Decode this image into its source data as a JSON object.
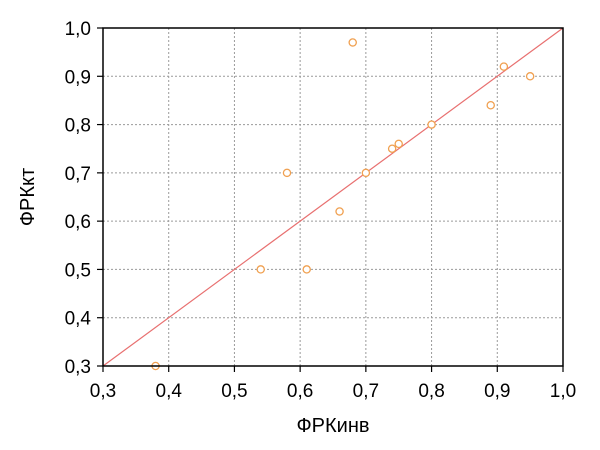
{
  "chart_data": {
    "type": "scatter",
    "title": "",
    "xlabel": "ФРКинв",
    "ylabel": "ФРКкт",
    "xlim": [
      0.3,
      1.0
    ],
    "ylim": [
      0.3,
      1.0
    ],
    "xticks": [
      0.3,
      0.4,
      0.5,
      0.6,
      0.7,
      0.8,
      0.9,
      1.0
    ],
    "yticks": [
      0.3,
      0.4,
      0.5,
      0.6,
      0.7,
      0.8,
      0.9,
      1.0
    ],
    "xtick_labels": [
      "0,3",
      "0,4",
      "0,5",
      "0,6",
      "0,7",
      "0,8",
      "0,9",
      "1,0"
    ],
    "ytick_labels": [
      "0,3",
      "0,4",
      "0,5",
      "0,6",
      "0,7",
      "0,8",
      "0,9",
      "1,0"
    ],
    "grid": true,
    "series": [
      {
        "marker": "open-circle",
        "color": "#f0a050",
        "points": [
          {
            "x": 0.38,
            "y": 0.3
          },
          {
            "x": 0.54,
            "y": 0.5
          },
          {
            "x": 0.58,
            "y": 0.7
          },
          {
            "x": 0.61,
            "y": 0.5
          },
          {
            "x": 0.66,
            "y": 0.62
          },
          {
            "x": 0.68,
            "y": 0.97
          },
          {
            "x": 0.7,
            "y": 0.7
          },
          {
            "x": 0.74,
            "y": 0.75
          },
          {
            "x": 0.75,
            "y": 0.76
          },
          {
            "x": 0.8,
            "y": 0.8
          },
          {
            "x": 0.89,
            "y": 0.84
          },
          {
            "x": 0.91,
            "y": 0.92
          },
          {
            "x": 0.95,
            "y": 0.9
          }
        ]
      }
    ],
    "reference_line": {
      "kind": "identity",
      "from": [
        0.3,
        0.3
      ],
      "to": [
        1.0,
        1.0
      ],
      "color": "#e87070"
    }
  }
}
